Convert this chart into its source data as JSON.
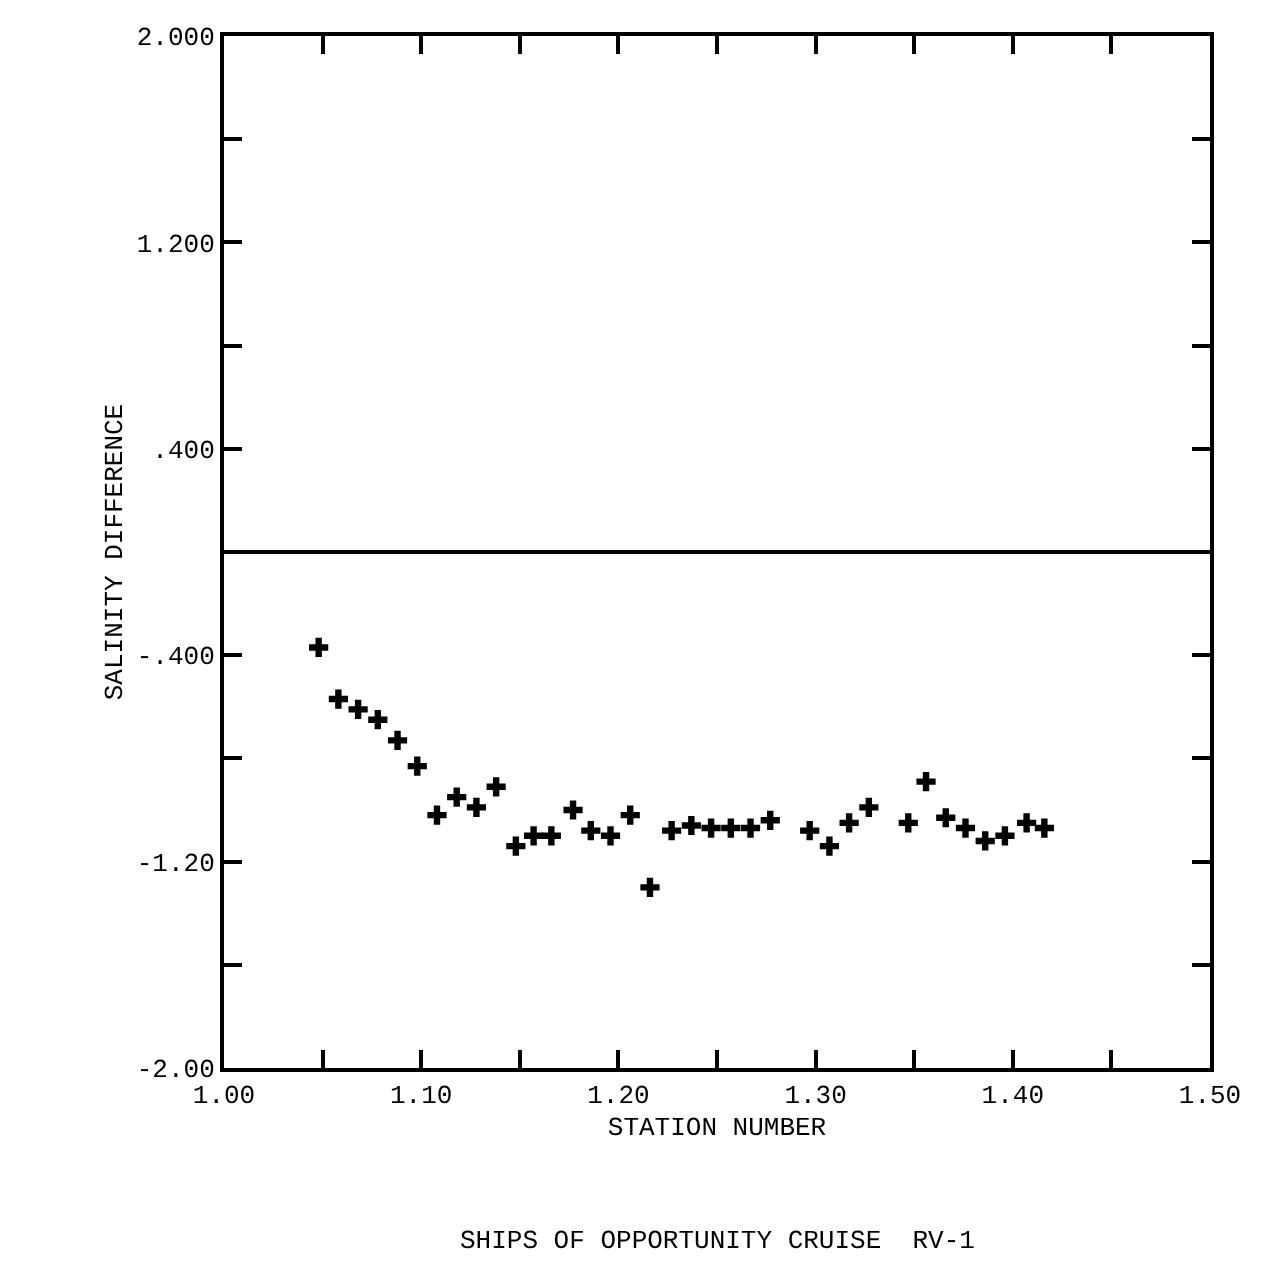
{
  "chart_data": {
    "type": "scatter",
    "xlabel": "STATION NUMBER",
    "ylabel": "SALINITY DIFFERENCE",
    "annotations": [
      "SHIPS OF OPPORTUNITY CRUISE  RV-1"
    ],
    "x": [
      1.048,
      1.058,
      1.068,
      1.078,
      1.088,
      1.098,
      1.108,
      1.118,
      1.128,
      1.138,
      1.148,
      1.157,
      1.166,
      1.177,
      1.186,
      1.196,
      1.206,
      1.216,
      1.227,
      1.237,
      1.247,
      1.257,
      1.267,
      1.277,
      1.297,
      1.307,
      1.317,
      1.327,
      1.347,
      1.356,
      1.366,
      1.376,
      1.386,
      1.396,
      1.407,
      1.416
    ],
    "series": [
      {
        "color": "#000000",
        "values": [
          -0.37,
          -0.57,
          -0.61,
          -0.65,
          -0.73,
          -0.83,
          -1.02,
          -0.95,
          -0.99,
          -0.91,
          -1.14,
          -1.1,
          -1.1,
          -1.0,
          -1.08,
          -1.1,
          -1.02,
          -1.3,
          -1.08,
          -1.06,
          -1.07,
          -1.07,
          -1.07,
          -1.04,
          -1.08,
          -1.14,
          -1.05,
          -0.99,
          -1.05,
          -0.89,
          -1.03,
          -1.07,
          -1.12,
          -1.1,
          -1.05,
          -1.07
        ]
      }
    ],
    "marker": "cross",
    "xlim": [
      1.0,
      1.5
    ],
    "xticks": [
      {
        "value": 1.0,
        "label": "1.00"
      },
      {
        "value": 1.05,
        "label": null
      },
      {
        "value": 1.1,
        "label": "1.10"
      },
      {
        "value": 1.15,
        "label": null
      },
      {
        "value": 1.2,
        "label": "1.20"
      },
      {
        "value": 1.25,
        "label": null
      },
      {
        "value": 1.3,
        "label": "1.30"
      },
      {
        "value": 1.35,
        "label": null
      },
      {
        "value": 1.4,
        "label": "1.40"
      },
      {
        "value": 1.45,
        "label": null
      },
      {
        "value": 1.5,
        "label": "1.50"
      }
    ],
    "ylim": [
      -2.0,
      2.0
    ],
    "yticks": [
      {
        "value": -2.0,
        "label": "-2.00"
      },
      {
        "value": -1.6,
        "label": null
      },
      {
        "value": -1.2,
        "label": "-1.20"
      },
      {
        "value": -0.8,
        "label": null
      },
      {
        "value": -0.4,
        "label": "-.400"
      },
      {
        "value": 0.0,
        "label": null
      },
      {
        "value": 0.4,
        "label": ".400"
      },
      {
        "value": 0.8,
        "label": null
      },
      {
        "value": 1.2,
        "label": "1.200"
      },
      {
        "value": 1.6,
        "label": null
      },
      {
        "value": 2.0,
        "label": "2.000"
      }
    ],
    "ref_lines": [
      {
        "axis": "y",
        "value": 0.0,
        "color": "#000000"
      }
    ]
  }
}
